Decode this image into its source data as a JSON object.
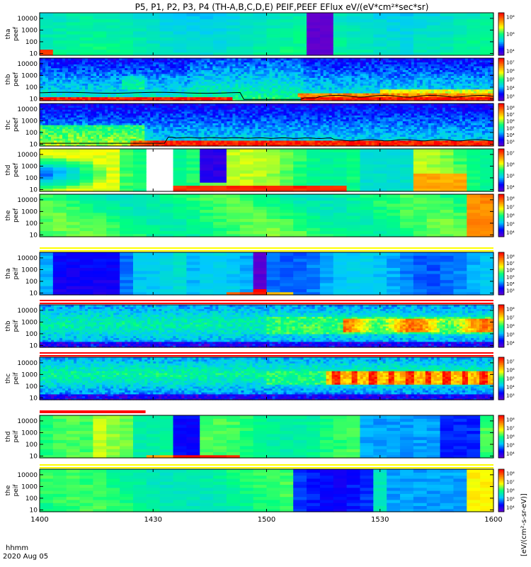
{
  "chart_data": {
    "type": "heatmap",
    "title": "P5, P1, P2, P3, P4 (TH-A,B,C,D,E) PEIF,PEEF EFlux eV/(eV*cm²*sec*sr)",
    "x_axis": {
      "tick_labels": [
        "1400",
        "1430",
        "1500",
        "1530",
        "1600"
      ],
      "range_minutes": [
        0,
        120
      ],
      "label_line1": "hhmm",
      "label_line2": "2020 Aug 05"
    },
    "y_axis_tick_labels": [
      "10000",
      "1000",
      "100",
      "10"
    ],
    "y_scale": "log",
    "colorbar_units_label": "[eV/(cm²-s-sr-eV)]",
    "colormap": [
      "#6600cc",
      "#0000ff",
      "#00c8ff",
      "#00ff80",
      "#ffff00",
      "#ff8000",
      "#ff0000"
    ],
    "panels": [
      {
        "probe": "tha",
        "species": "peef",
        "ylabel": [
          "tha",
          "peef"
        ],
        "colorbar_ticks": [
          "10⁸",
          "10⁶",
          "10⁴"
        ],
        "ylim_eV": [
          7,
          30000
        ],
        "style": "coarse"
      },
      {
        "probe": "thb",
        "species": "peef",
        "ylabel": [
          "thb",
          "peef"
        ],
        "colorbar_ticks": [
          "10⁷",
          "10⁶",
          "10⁵",
          "10⁴",
          "10³"
        ],
        "ylim_eV": [
          7,
          30000
        ],
        "style": "fine"
      },
      {
        "probe": "thc",
        "species": "peef",
        "ylabel": [
          "thc",
          "peef"
        ],
        "colorbar_ticks": [
          "10⁸",
          "10⁷",
          "10⁶",
          "10⁵",
          "10⁴",
          "10³"
        ],
        "ylim_eV": [
          7,
          30000
        ],
        "style": "fine"
      },
      {
        "probe": "thd",
        "species": "peef",
        "ylabel": [
          "thd",
          "peef"
        ],
        "colorbar_ticks": [
          "10⁷",
          "10⁶",
          "10⁵",
          "10⁴"
        ],
        "ylim_eV": [
          7,
          30000
        ],
        "style": "coarse"
      },
      {
        "probe": "the",
        "species": "peef",
        "ylabel": [
          "the",
          "peef"
        ],
        "colorbar_ticks": [
          "10⁸",
          "10⁷",
          "10⁶",
          "10⁵",
          "10⁴"
        ],
        "ylim_eV": [
          7,
          30000
        ],
        "style": "coarse"
      },
      {
        "probe": "tha",
        "species": "peif",
        "ylabel": [
          "tha",
          "peif"
        ],
        "colorbar_ticks": [
          "10⁸",
          "10⁷",
          "10⁶",
          "10⁵",
          "10⁴",
          "10³"
        ],
        "ylim_eV": [
          7,
          30000
        ],
        "style": "coarse"
      },
      {
        "probe": "thb",
        "species": "peif",
        "ylabel": [
          "thb",
          "peif"
        ],
        "colorbar_ticks": [
          "10⁸",
          "10⁷",
          "10⁶",
          "10⁵",
          "10⁴"
        ],
        "ylim_eV": [
          7,
          30000
        ],
        "style": "fine"
      },
      {
        "probe": "thc",
        "species": "peif",
        "ylabel": [
          "thc",
          "peif"
        ],
        "colorbar_ticks": [
          "10⁷",
          "10⁶",
          "10⁵",
          "10⁴",
          "10³"
        ],
        "ylim_eV": [
          7,
          30000
        ],
        "style": "fine"
      },
      {
        "probe": "thd",
        "species": "peif",
        "ylabel": [
          "thd",
          "peif"
        ],
        "colorbar_ticks": [
          "10⁸",
          "10⁷",
          "10⁶",
          "10⁵",
          "10⁴"
        ],
        "ylim_eV": [
          7,
          30000
        ],
        "style": "coarse"
      },
      {
        "probe": "the",
        "species": "peif",
        "ylabel": [
          "the",
          "peif"
        ],
        "colorbar_ticks": [
          "10⁸",
          "10⁷",
          "10⁶",
          "10⁵",
          "10⁴"
        ],
        "ylim_eV": [
          7,
          30000
        ],
        "style": "coarse"
      }
    ],
    "grid": false,
    "legend": "colorbars-right"
  }
}
